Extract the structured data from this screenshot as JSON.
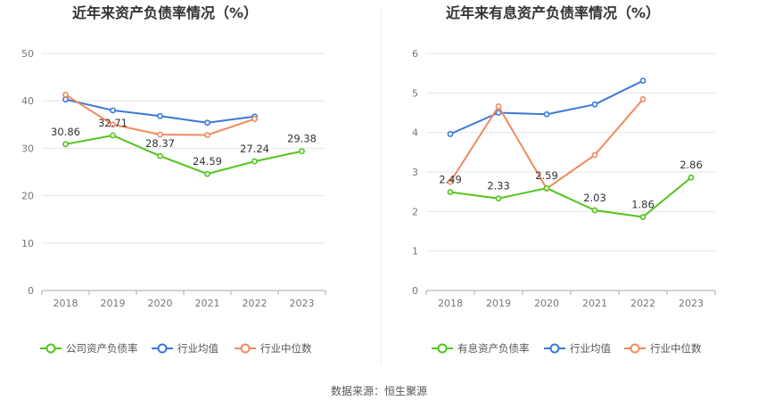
{
  "source": "数据来源：恒生聚源",
  "chart_data": [
    {
      "type": "line",
      "title": "近年来资产负债率情况（%）",
      "categories": [
        "2018",
        "2019",
        "2020",
        "2021",
        "2022",
        "2023"
      ],
      "ylim": [
        0,
        50
      ],
      "yticks": [
        0,
        10,
        20,
        30,
        40,
        50
      ],
      "grid": true,
      "legend_position": "bottom",
      "series": [
        {
          "name": "公司资产负债率",
          "color": "#52c41a",
          "values": [
            30.86,
            32.71,
            28.37,
            24.59,
            27.24,
            29.38
          ],
          "labels": [
            "30.86",
            "32.71",
            "28.37",
            "24.59",
            "27.24",
            "29.38"
          ]
        },
        {
          "name": "行业均值",
          "color": "#3a78d8",
          "values": [
            40.3,
            38.0,
            36.8,
            35.4,
            36.7,
            null
          ]
        },
        {
          "name": "行业中位数",
          "color": "#f08a5d",
          "values": [
            41.3,
            35.0,
            32.9,
            32.8,
            36.2,
            null
          ]
        }
      ]
    },
    {
      "type": "line",
      "title": "近年来有息资产负债率情况（%）",
      "categories": [
        "2018",
        "2019",
        "2020",
        "2021",
        "2022",
        "2023"
      ],
      "ylim": [
        0,
        6
      ],
      "yticks": [
        0,
        1,
        2,
        3,
        4,
        5,
        6
      ],
      "grid": true,
      "legend_position": "bottom",
      "series": [
        {
          "name": "有息资产负债率",
          "color": "#52c41a",
          "values": [
            2.49,
            2.33,
            2.59,
            2.03,
            1.86,
            2.86
          ],
          "labels": [
            "2.49",
            "2.33",
            "2.59",
            "2.03",
            "1.86",
            "2.86"
          ]
        },
        {
          "name": "行业均值",
          "color": "#3a78d8",
          "values": [
            3.96,
            4.5,
            4.46,
            4.71,
            5.31,
            null
          ]
        },
        {
          "name": "行业中位数",
          "color": "#f08a5d",
          "values": [
            2.75,
            4.66,
            2.58,
            3.43,
            4.84,
            null
          ]
        }
      ]
    }
  ]
}
